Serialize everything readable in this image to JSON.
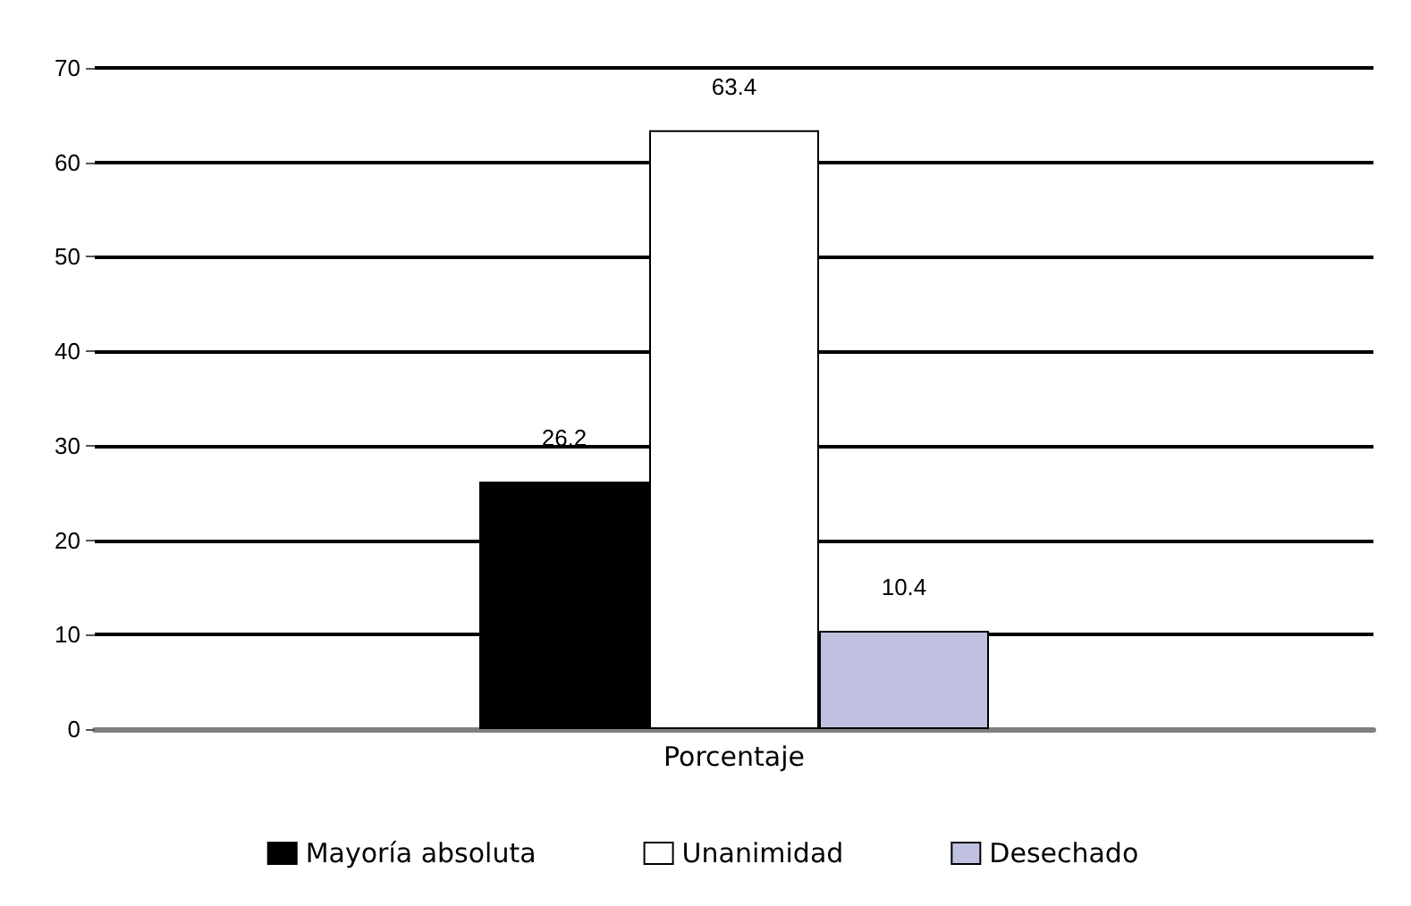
{
  "chart_data": {
    "type": "bar",
    "categories": [
      "Porcentaje"
    ],
    "series": [
      {
        "name": "Mayoría absoluta",
        "color": "#000000",
        "values": [
          26.2
        ]
      },
      {
        "name": "Unanimidad",
        "color": "#ffffff",
        "values": [
          63.4
        ]
      },
      {
        "name": "Desechado",
        "color": "#c0c0e0",
        "values": [
          10.4
        ]
      }
    ],
    "ylim": [
      0,
      70
    ],
    "yticks": [
      0,
      10,
      20,
      30,
      40,
      50,
      60,
      70
    ],
    "grid": "y",
    "legend": "bottom",
    "data_labels": true
  }
}
